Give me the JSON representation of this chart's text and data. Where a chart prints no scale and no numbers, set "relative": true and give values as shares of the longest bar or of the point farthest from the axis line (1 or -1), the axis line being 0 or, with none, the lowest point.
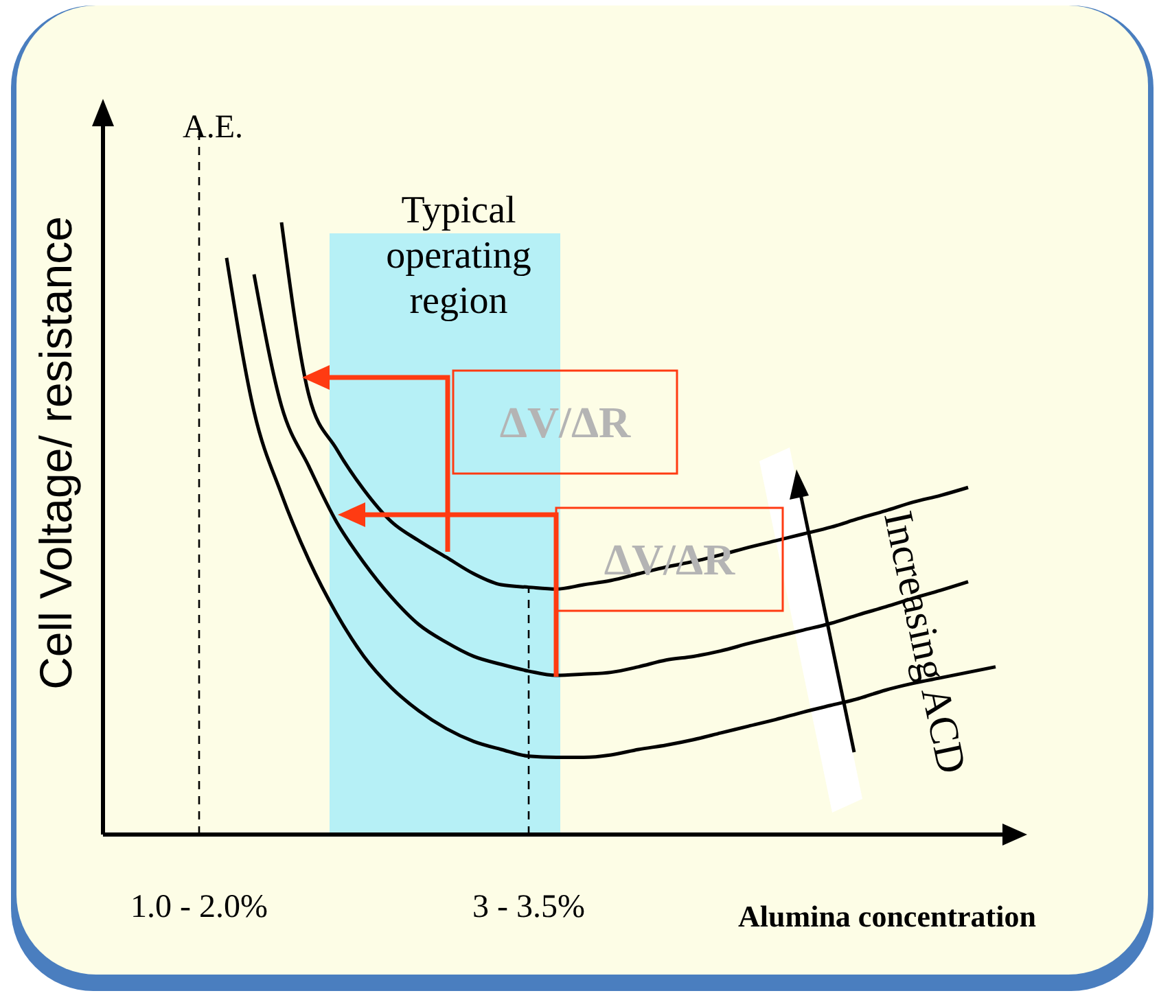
{
  "chart_data": {
    "type": "line",
    "relative": true,
    "xlabel": "Alumina concentration",
    "ylabel": "Cell Voltage/  resistance",
    "categories": [
      null,
      null,
      null,
      "1.0 - 2.0%",
      null,
      null,
      null,
      null,
      null,
      null,
      null,
      null,
      null,
      null,
      null,
      "3 - 3.5%",
      null,
      null,
      null,
      null,
      null,
      null,
      null,
      null,
      null,
      null,
      null,
      null,
      null,
      null,
      null,
      null,
      null
    ],
    "series": [
      {
        "color": "#000000",
        "values": [
          null,
          null,
          null,
          null,
          null,
          null,
          1.0,
          0.717,
          0.63,
          0.563,
          0.511,
          0.48,
          0.453,
          0.426,
          0.408,
          0.404,
          0.401,
          0.408,
          0.415,
          0.426,
          0.437,
          0.446,
          0.457,
          0.469,
          0.48,
          0.491,
          0.502,
          0.516,
          0.529,
          0.543,
          0.554,
          0.567,
          null
        ]
      },
      {
        "color": "#000000",
        "values": [
          null,
          null,
          null,
          null,
          null,
          0.915,
          0.7,
          0.601,
          0.511,
          0.444,
          0.388,
          0.343,
          0.314,
          0.291,
          0.278,
          0.267,
          0.26,
          0.262,
          0.265,
          0.274,
          0.285,
          0.291,
          0.3,
          0.312,
          0.323,
          0.334,
          0.345,
          0.359,
          0.372,
          0.386,
          0.399,
          0.413,
          null
        ]
      },
      {
        "color": "#000000",
        "values": [
          null,
          null,
          null,
          null,
          0.942,
          0.691,
          0.556,
          0.448,
          0.361,
          0.291,
          0.24,
          0.202,
          0.173,
          0.152,
          0.139,
          0.128,
          0.126,
          0.126,
          0.13,
          0.139,
          0.146,
          0.155,
          0.166,
          0.177,
          0.188,
          0.2,
          0.211,
          0.222,
          0.236,
          0.247,
          0.256,
          0.265,
          0.274
        ]
      }
    ],
    "ref_lines": [
      {
        "axis": "x",
        "value": "1.0 - 2.0%",
        "label": "A.E.",
        "line_style": "dashed"
      },
      {
        "axis": "x",
        "value": "3 - 3.5%",
        "label": null,
        "line_style": "dashed"
      }
    ],
    "annotations": [
      "Typical operating region",
      "ΔV/ΔR",
      "ΔV/ΔR",
      "Increasing ACD"
    ]
  }
}
